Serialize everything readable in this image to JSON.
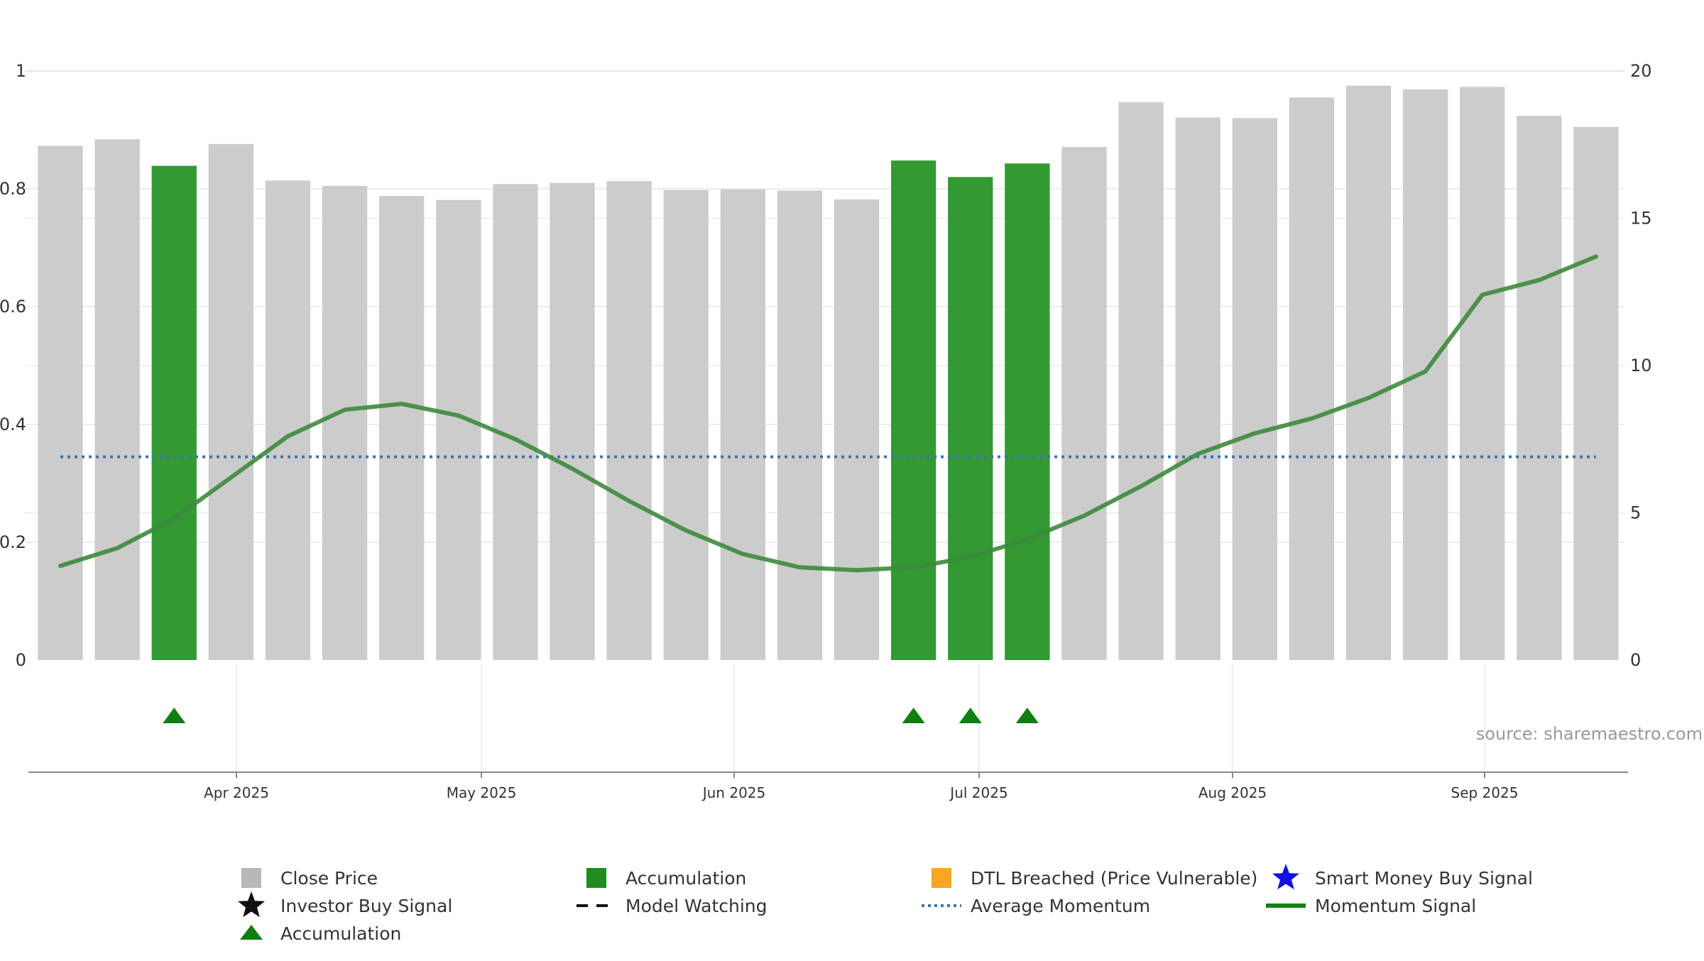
{
  "chart_data": {
    "type": "bar",
    "source_text": "source: sharemaestro.com",
    "x_ticks": [
      "Apr 2025",
      "May 2025",
      "Jun 2025",
      "Jul 2025",
      "Aug 2025",
      "Sep 2025"
    ],
    "y_left": {
      "ylim": [
        0,
        1
      ],
      "ticks": [
        "0",
        "0.2",
        "0.4",
        "0.6",
        "0.8",
        "1"
      ]
    },
    "y_right": {
      "ylim": [
        0,
        20
      ],
      "ticks": [
        "0",
        "5",
        "10",
        "15",
        "20"
      ]
    },
    "bar_count": 28,
    "series": [
      {
        "name": "Close Price",
        "axis": "left",
        "values": [
          0.873,
          0.884,
          0.839,
          0.876,
          0.814,
          0.805,
          0.788,
          0.781,
          0.808,
          0.81,
          0.813,
          0.798,
          0.799,
          0.797,
          0.782,
          0.848,
          0.82,
          0.843,
          0.871,
          0.947,
          0.921,
          0.92,
          0.955,
          0.975,
          0.969,
          0.973,
          0.924,
          0.905
        ],
        "accumulation_flags": [
          false,
          false,
          true,
          false,
          false,
          false,
          false,
          false,
          false,
          false,
          false,
          false,
          false,
          false,
          false,
          true,
          true,
          true,
          false,
          false,
          false,
          false,
          false,
          false,
          false,
          false,
          false,
          false
        ],
        "colors": {
          "normal": "#cccccc",
          "accumulation": "#339933"
        }
      },
      {
        "name": "Momentum Signal",
        "axis": "right",
        "color": "#3d8a3d",
        "values": [
          3.2,
          3.8,
          4.8,
          6.2,
          7.6,
          8.5,
          8.7,
          8.3,
          7.5,
          6.5,
          5.4,
          4.4,
          3.6,
          3.15,
          3.05,
          3.15,
          3.5,
          4.1,
          4.9,
          5.9,
          7.0,
          7.7,
          8.2,
          8.9,
          9.8,
          12.4,
          12.9,
          13.7
        ]
      },
      {
        "name": "Average Momentum",
        "axis": "right",
        "color": "#3a75a8",
        "value": 6.9
      }
    ],
    "accumulation_markers": [
      2,
      15,
      16,
      17
    ],
    "marker_color": "#0f7f12",
    "legend": {
      "placement": "bottom",
      "items": [
        {
          "label": "Close Price",
          "symbol": "gray-square"
        },
        {
          "label": "Accumulation",
          "symbol": "green-square"
        },
        {
          "label": "DTL Breached (Price Vulnerable)",
          "symbol": "orange-square"
        },
        {
          "label": "Smart Money Buy Signal",
          "symbol": "blue-star"
        },
        {
          "label": "Investor Buy Signal",
          "symbol": "black-star"
        },
        {
          "label": "Model Watching",
          "symbol": "black-dash-line"
        },
        {
          "label": "Average Momentum",
          "symbol": "blue-dotted-line"
        },
        {
          "label": "Momentum Signal",
          "symbol": "green-line"
        },
        {
          "label": "Accumulation",
          "symbol": "green-triangle"
        }
      ],
      "colors": {
        "gray": "#b8b8b8",
        "green": "#1e8c1e",
        "orange": "#f5a623",
        "blue": "#1010e0",
        "black": "#111111",
        "dotted": "#3a75a8",
        "line_green": "#128012",
        "triangle": "#0f7f12"
      }
    }
  }
}
